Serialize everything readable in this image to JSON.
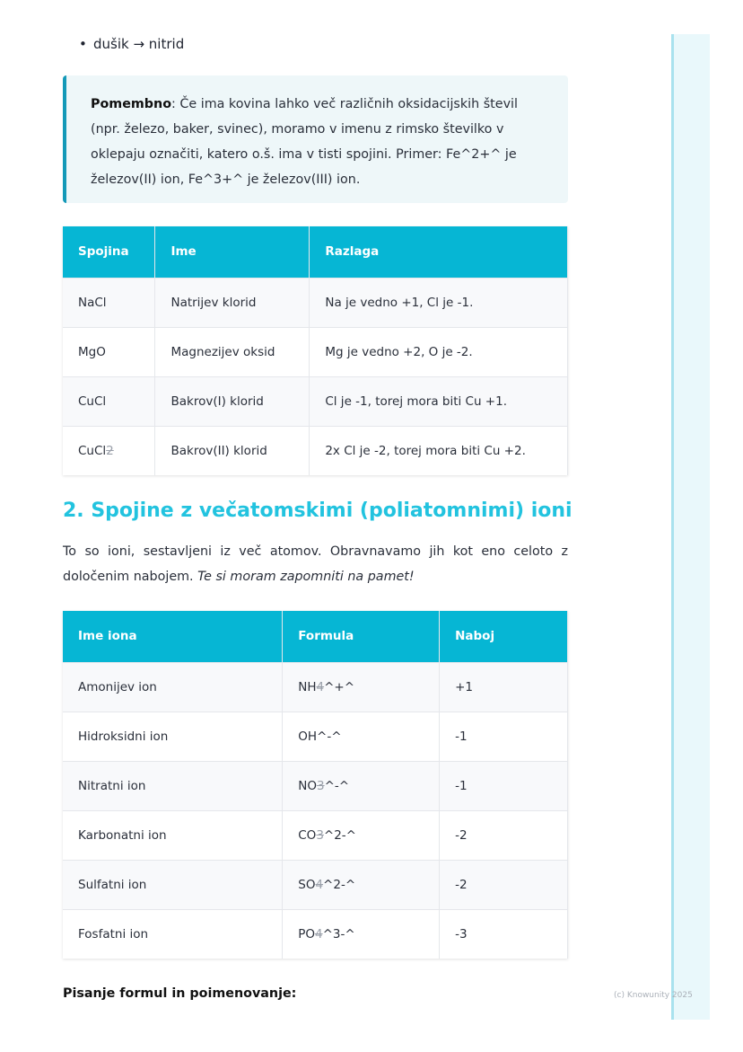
{
  "bullet": "dušik → nitrid",
  "note": {
    "label": "Pomembno",
    "text": ": Če ima kovina lahko več različnih oksidacijskih števil (npr. železo, baker, svinec), moramo v imenu z rimsko številko v oklepaju označiti, katero o.š. ima v tisti spojini. Primer: Fe^2+^ je železov(II) ion, Fe^3+^ je železov(III) ion."
  },
  "table1": {
    "headers": [
      "Spojina",
      "Ime",
      "Razlaga"
    ],
    "rows": [
      [
        "NaCl",
        "Natrijev klorid",
        "Na je vedno +1, Cl je -1."
      ],
      [
        "MgO",
        "Magnezijev oksid",
        "Mg je vedno +2, O je -2."
      ],
      [
        "CuCl",
        "Bakrov(I) klorid",
        "Cl je -1, torej mora biti Cu +1."
      ],
      [
        "CuCl2",
        "Bakrov(II) klorid",
        "2x Cl je -2, torej mora biti Cu +2."
      ]
    ]
  },
  "heading": "2. Spojine z večatomskimi (poliatomnimi) ioni",
  "para": {
    "text": "To so ioni, sestavljeni iz več atomov. Obravnavamo jih kot eno celoto z določenim nabojem. ",
    "italic": "Te si moram zapomniti na pamet!"
  },
  "table2": {
    "headers": [
      "Ime iona",
      "Formula",
      "Naboj"
    ],
    "rows": [
      [
        "Amonijev ion",
        "NH4^+^",
        "+1"
      ],
      [
        "Hidroksidni ion",
        "OH^-^",
        "-1"
      ],
      [
        "Nitratni ion",
        "NO3^-^",
        "-1"
      ],
      [
        "Karbonatni ion",
        "CO3^2-^",
        "-2"
      ],
      [
        "Sulfatni ion",
        "SO4^2-^",
        "-2"
      ],
      [
        "Fosfatni ion",
        "PO4^3-^",
        "-3"
      ]
    ]
  },
  "subheading": "Pisanje formul in poimenovanje:",
  "footer": "(c) Knowunity 2025"
}
